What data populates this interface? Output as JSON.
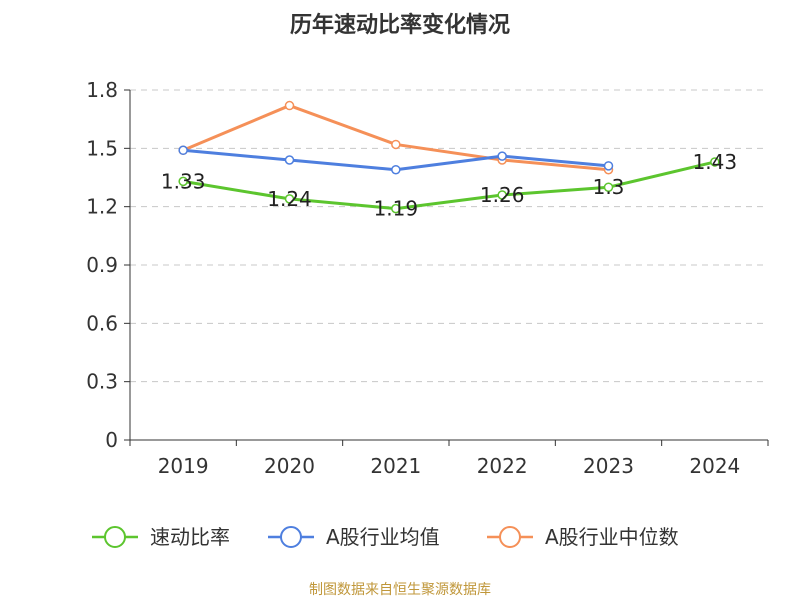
{
  "chart_data": {
    "type": "line",
    "title": "历年速动比率变化情况",
    "categories": [
      "2019",
      "2020",
      "2021",
      "2022",
      "2023",
      "2024"
    ],
    "yticks": [
      "0",
      "0.3",
      "0.6",
      "0.9",
      "1.2",
      "1.5",
      "1.8"
    ],
    "ylim": [
      0,
      1.8
    ],
    "grid": true,
    "legend_position": "bottom",
    "series": [
      {
        "name": "速动比率",
        "color": "#5cc52e",
        "values": [
          1.33,
          1.24,
          1.19,
          1.26,
          1.3,
          1.43
        ],
        "labels": [
          "1.33",
          "1.24",
          "1.19",
          "1.26",
          "1.3",
          "1.43"
        ]
      },
      {
        "name": "A股行业均值",
        "color": "#4e7fdf",
        "values": [
          1.49,
          1.44,
          1.39,
          1.46,
          1.41,
          null
        ]
      },
      {
        "name": "A股行业中位数",
        "color": "#f59058",
        "values": [
          1.49,
          1.72,
          1.52,
          1.44,
          1.39,
          null
        ]
      }
    ]
  },
  "source_text": "制图数据来自恒生聚源数据库"
}
